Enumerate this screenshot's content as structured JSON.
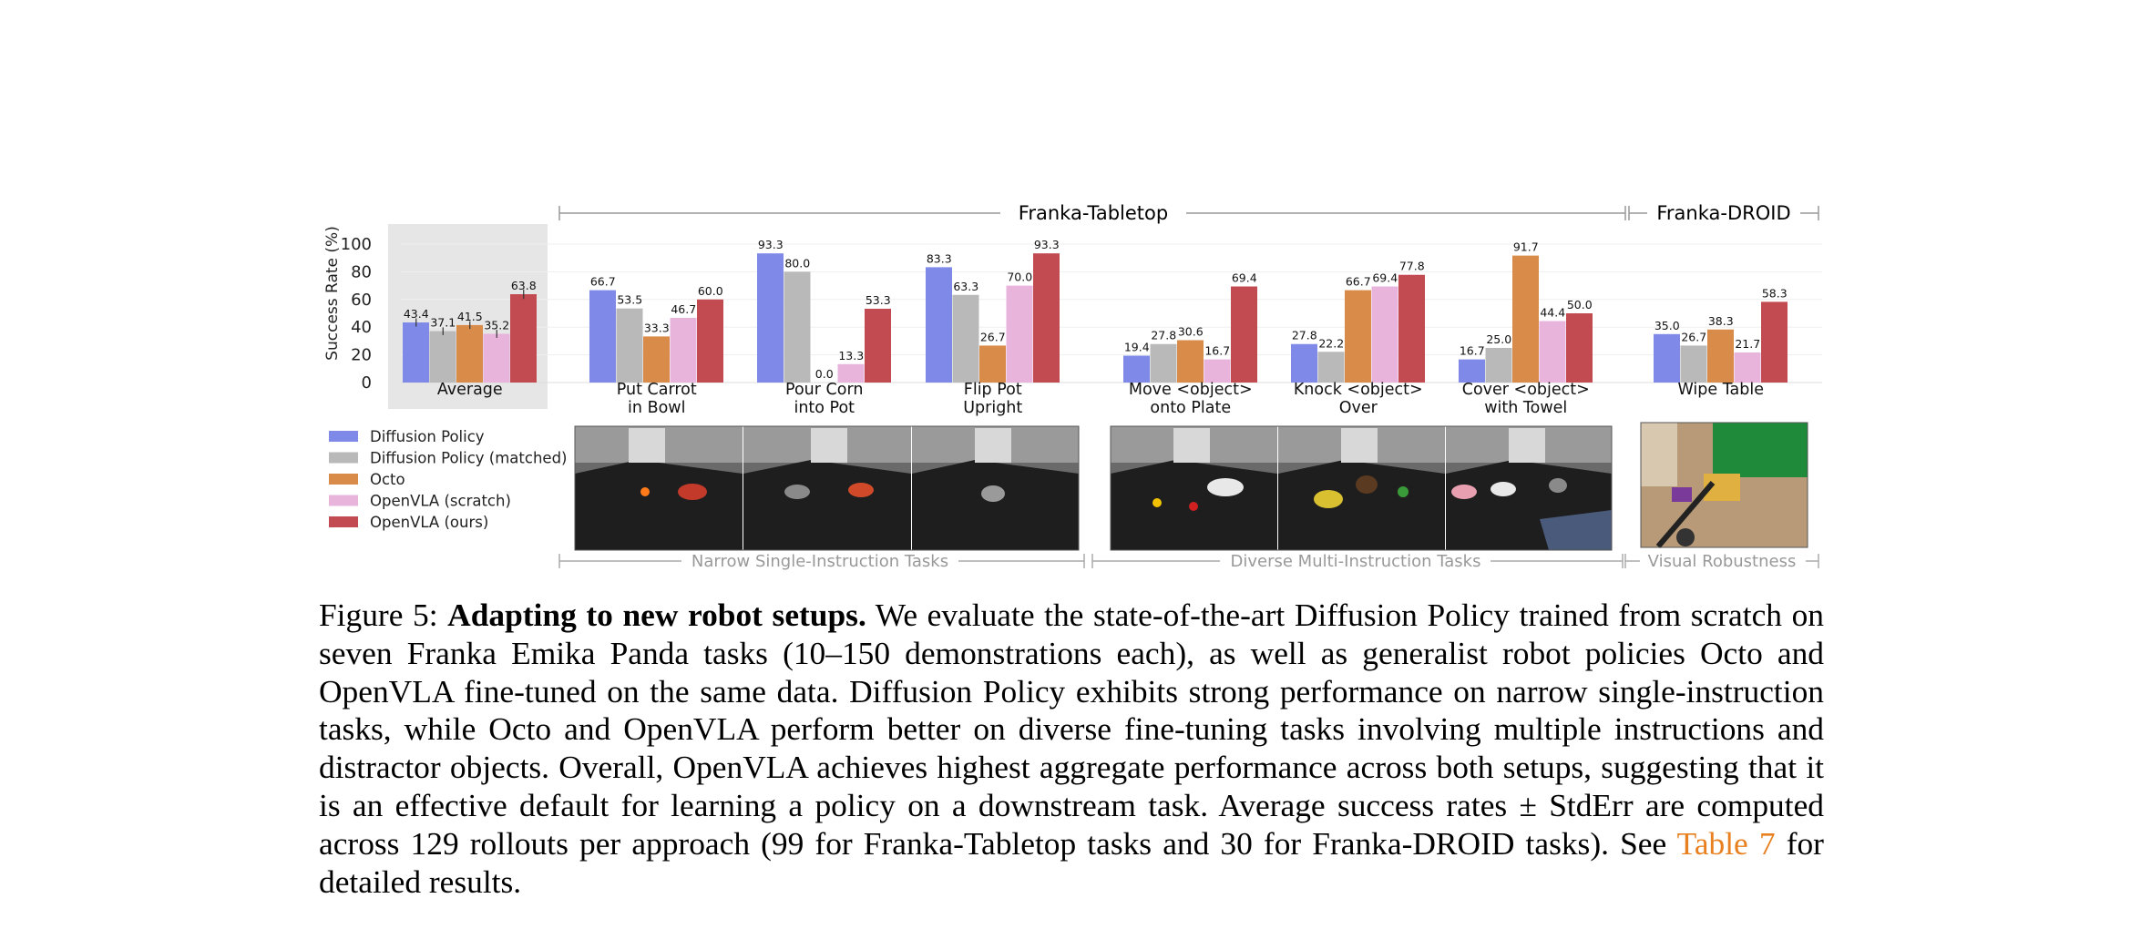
{
  "chart_data": {
    "type": "bar",
    "ylabel": "Success Rate (%)",
    "ylim": [
      0,
      100
    ],
    "yticks": [
      0,
      20,
      40,
      60,
      80,
      100
    ],
    "categories": [
      "Average",
      "Put Carrot\nin Bowl",
      "Pour Corn\ninto Pot",
      "Flip Pot\nUpright",
      "Move <object>\nonto Plate",
      "Knock <object>\nOver",
      "Cover <object>\nwith Towel",
      "Wipe Table"
    ],
    "series": [
      {
        "name": "Diffusion Policy",
        "color": "#7f8ae8",
        "values": [
          43.4,
          66.7,
          93.3,
          83.3,
          19.4,
          27.8,
          16.7,
          35.0
        ]
      },
      {
        "name": "Diffusion Policy (matched)",
        "color": "#b9b9b9",
        "values": [
          37.1,
          53.5,
          80.0,
          63.3,
          27.8,
          22.2,
          25.0,
          26.7
        ]
      },
      {
        "name": "Octo",
        "color": "#d98c4a",
        "values": [
          41.5,
          33.3,
          0.0,
          26.7,
          30.6,
          66.7,
          91.7,
          38.3
        ]
      },
      {
        "name": "OpenVLA (scratch)",
        "color": "#e8b4dc",
        "values": [
          35.2,
          46.7,
          13.3,
          70.0,
          16.7,
          69.4,
          44.4,
          21.7
        ]
      },
      {
        "name": "OpenVLA (ours)",
        "color": "#c24b51",
        "values": [
          63.8,
          60.0,
          53.3,
          93.3,
          69.4,
          77.8,
          50.0,
          58.3
        ]
      }
    ],
    "value_labels": [
      [
        "43.4",
        "66.7",
        "93.3",
        "83.3",
        "19.4",
        "27.8",
        "16.7",
        "35.0"
      ],
      [
        "37.1",
        "53.5",
        "80.0",
        "63.3",
        "27.8",
        "22.2",
        "25.0",
        "26.7"
      ],
      [
        "41.5",
        "33.3",
        "0.0",
        "26.7",
        "30.6",
        "66.7",
        "91.7",
        "38.3"
      ],
      [
        "35.2",
        "46.7",
        "13.3",
        "70.0",
        "16.7",
        "69.4",
        "44.4",
        "21.7"
      ],
      [
        "63.8",
        "60.0",
        "53.3",
        "93.3",
        "69.4",
        "77.8",
        "50.0",
        "58.3"
      ]
    ],
    "error_bars_on": "Average",
    "top_groups": [
      "Franka-Tabletop",
      "Franka-DROID"
    ],
    "bottom_groups": [
      "Narrow Single-Instruction Tasks",
      "Diverse Multi-Instruction Tasks",
      "Visual Robustness"
    ]
  },
  "caption": {
    "label": "Figure 5:",
    "lead": "Adapting to new robot setups.",
    "body": "We evaluate the state-of-the-art Diffusion Policy trained from scratch on seven Franka Emika Panda tasks (10–150 demonstrations each), as well as generalist robot policies Octo and OpenVLA fine-tuned on the same data. Diffusion Policy exhibits strong performance on narrow single-instruction tasks, while Octo and OpenVLA perform better on diverse fine-tuning tasks involving multiple instructions and distractor objects. Overall, OpenVLA achieves highest aggregate performance across both setups, suggesting that it is an effective default for learning a policy on a downstream task. Average success rates ± StdErr are computed across 129 rollouts per approach (99 for Franka-Tabletop tasks and 30 for Franka-DROID tasks). See",
    "ref": "Table 7",
    "tail": "for detailed results."
  }
}
